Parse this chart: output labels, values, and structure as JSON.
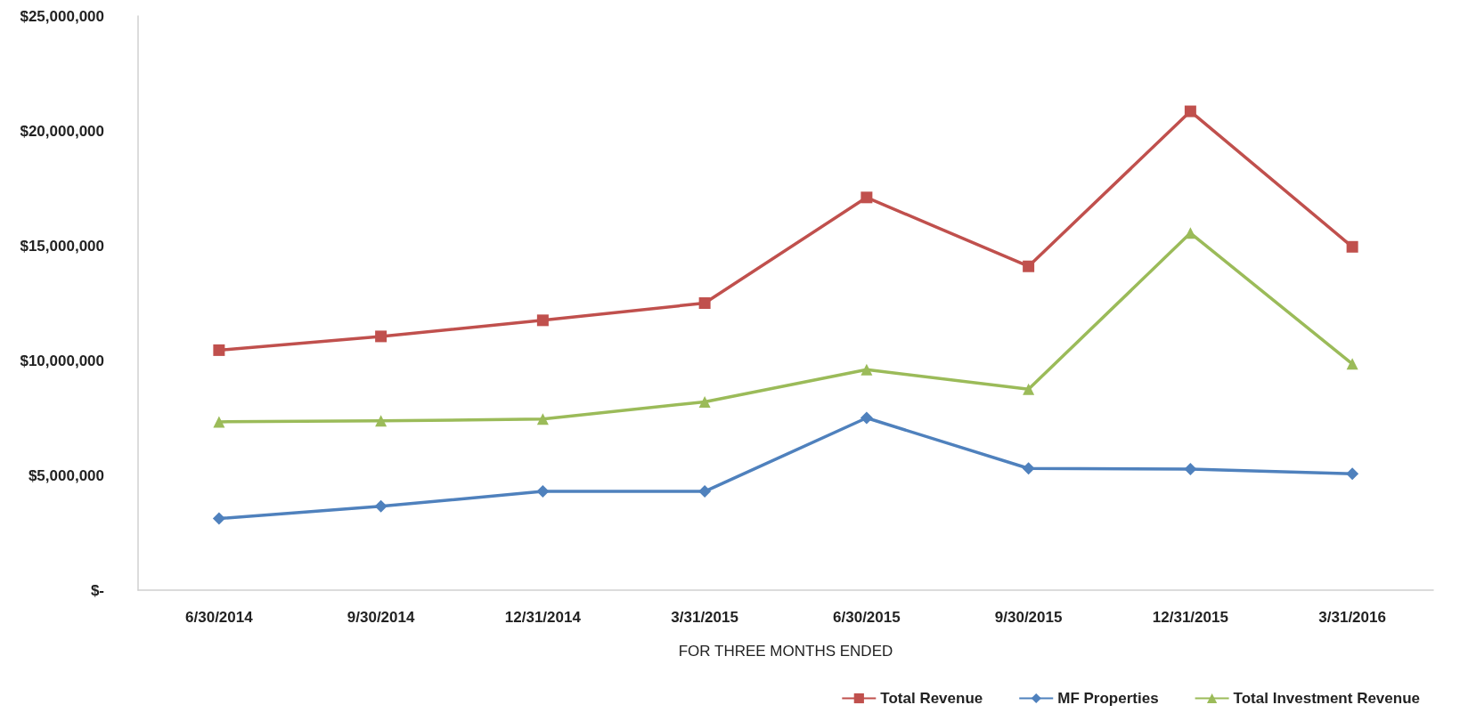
{
  "chart_data": {
    "type": "line",
    "xlabel": "FOR THREE MONTHS ENDED",
    "categories": [
      "6/30/2014",
      "9/30/2014",
      "12/31/2014",
      "3/31/2015",
      "6/30/2015",
      "9/30/2015",
      "12/31/2015",
      "3/31/2016"
    ],
    "series": [
      {
        "name": "Total Revenue",
        "color": "#c0504d",
        "marker": "square",
        "values": [
          10450000,
          11050000,
          11750000,
          12500000,
          17100000,
          14100000,
          20850000,
          14950000
        ]
      },
      {
        "name": "MF Properties",
        "color": "#4f81bd",
        "marker": "diamond",
        "values": [
          3120000,
          3650000,
          4300000,
          4300000,
          7500000,
          5300000,
          5270000,
          5070000
        ]
      },
      {
        "name": "Total Investment Revenue",
        "color": "#9bbb59",
        "marker": "triangle",
        "values": [
          7330000,
          7370000,
          7450000,
          8200000,
          9600000,
          8750000,
          15550000,
          9850000
        ]
      }
    ],
    "ylim": [
      0,
      25000000
    ],
    "yticks": [
      {
        "value": 0,
        "label": "$-"
      },
      {
        "value": 5000000,
        "label": "$5,000,000"
      },
      {
        "value": 10000000,
        "label": "$10,000,000"
      },
      {
        "value": 15000000,
        "label": "$15,000,000"
      },
      {
        "value": 20000000,
        "label": "$20,000,000"
      },
      {
        "value": 25000000,
        "label": "$25,000,000"
      }
    ],
    "grid": false,
    "legend": "bottom right",
    "line_style": "solid"
  }
}
